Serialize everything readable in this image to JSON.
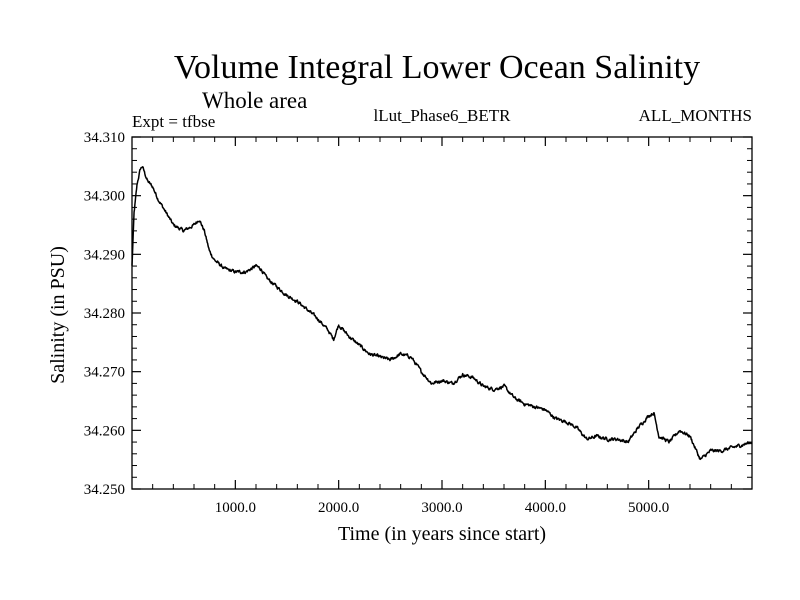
{
  "chart_data": {
    "type": "line",
    "title": "Volume Integral Lower Ocean Salinity",
    "subtitle": "Whole area",
    "left_label": "Expt = tfbse",
    "center_label": "lLut_Phase6_BETR",
    "right_label": "ALL_MONTHS",
    "xlabel": "Time (in years since start)",
    "ylabel": "Salinity (in PSU)",
    "xlim": [
      0,
      6000
    ],
    "ylim": [
      34.25,
      34.31
    ],
    "x_ticks": [
      1000,
      2000,
      3000,
      4000,
      5000
    ],
    "x_tick_labels": [
      "1000.0",
      "2000.0",
      "3000.0",
      "4000.0",
      "5000.0"
    ],
    "y_ticks": [
      34.25,
      34.26,
      34.27,
      34.28,
      34.29,
      34.3,
      34.31
    ],
    "y_tick_labels": [
      "34.250",
      "34.260",
      "34.270",
      "34.280",
      "34.290",
      "34.300",
      "34.310"
    ],
    "grid": false,
    "series": [
      {
        "name": "Salinity",
        "color": "#000000",
        "x": [
          0,
          20,
          50,
          80,
          100,
          150,
          200,
          250,
          300,
          350,
          400,
          450,
          500,
          550,
          600,
          650,
          700,
          750,
          800,
          900,
          1000,
          1100,
          1200,
          1250,
          1300,
          1400,
          1500,
          1600,
          1700,
          1800,
          1900,
          1950,
          2000,
          2100,
          2200,
          2300,
          2400,
          2500,
          2600,
          2700,
          2800,
          2900,
          3000,
          3100,
          3200,
          3300,
          3400,
          3500,
          3600,
          3700,
          3800,
          3900,
          4000,
          4100,
          4200,
          4300,
          4400,
          4500,
          4600,
          4700,
          4800,
          4900,
          5000,
          5050,
          5100,
          5200,
          5300,
          5400,
          5500,
          5600,
          5700,
          5800,
          5900,
          6000
        ],
        "y": [
          34.288,
          34.297,
          34.302,
          34.3045,
          34.305,
          34.3025,
          34.3015,
          34.2995,
          34.298,
          34.2965,
          34.295,
          34.2945,
          34.294,
          34.2945,
          34.295,
          34.296,
          34.294,
          34.2905,
          34.289,
          34.2875,
          34.287,
          34.287,
          34.288,
          34.2875,
          34.286,
          34.2845,
          34.283,
          34.282,
          34.2805,
          34.279,
          34.277,
          34.2755,
          34.278,
          34.276,
          34.2745,
          34.273,
          34.2725,
          34.272,
          34.273,
          34.2725,
          34.27,
          34.268,
          34.2685,
          34.268,
          34.2695,
          34.269,
          34.2675,
          34.267,
          34.2675,
          34.2655,
          34.2645,
          34.264,
          34.2635,
          34.262,
          34.2615,
          34.2605,
          34.2585,
          34.259,
          34.2585,
          34.2585,
          34.258,
          34.2605,
          34.2625,
          34.263,
          34.259,
          34.258,
          34.26,
          34.259,
          34.255,
          34.2565,
          34.2565,
          34.257,
          34.2575,
          34.258
        ]
      }
    ]
  }
}
